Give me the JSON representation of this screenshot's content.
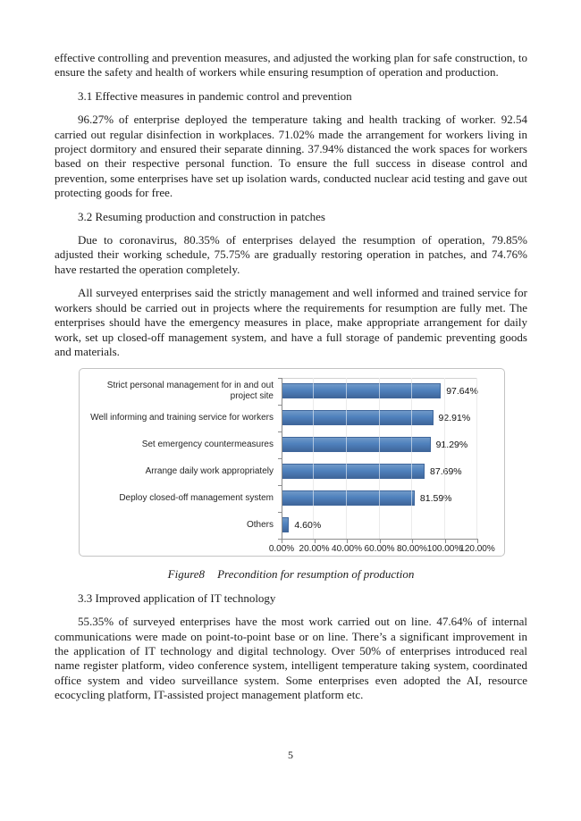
{
  "page": {
    "number": "5"
  },
  "content": {
    "para_intro": "effective controlling and prevention measures, and adjusted the working plan for safe construction, to ensure the safety and health of workers while ensuring resumption of operation and production.",
    "heading_31": "3.1 Effective measures in pandemic control and prevention",
    "para_31": "96.27% of enterprise deployed the temperature taking and health tracking of worker. 92.54 carried out regular disinfection in workplaces. 71.02% made the arrangement for workers living in project dormitory and ensured their separate dinning. 37.94% distanced the work spaces for workers based on their respective personal function. To ensure the full success in disease control and prevention, some enterprises have set up isolation wards, conducted nuclear acid testing and gave out protecting goods for free.",
    "heading_32": "3.2 Resuming production and construction in patches",
    "para_32a": "Due to coronavirus, 80.35% of enterprises delayed the resumption of operation, 79.85% adjusted their working schedule, 75.75% are gradually restoring operation in patches, and 74.76% have restarted the operation completely.",
    "para_32b": "All surveyed enterprises said the strictly management and well informed and trained service for workers should be carried out in projects where the requirements for resumption are fully met. The enterprises should have the emergency measures in place, make appropriate arrangement for daily work, set up closed-off management system, and have a full storage of pandemic preventing goods and materials.",
    "figure_caption_label": "Figure8",
    "figure_caption_text": "Precondition for resumption of production",
    "heading_33": "3.3 Improved application of IT technology",
    "para_33": "55.35% of surveyed enterprises have the most work carried out on line. 47.64% of internal communications were made on point-to-point base or on line. There’s a significant improvement in the application of IT technology and digital technology. Over 50% of enterprises introduced real name register platform, video conference system, intelligent temperature taking system, coordinated office system and video surveillance system. Some enterprises even adopted the AI, resource ecocycling platform, IT-assisted project management platform etc."
  },
  "chart_data": {
    "type": "bar",
    "orientation": "horizontal",
    "title": "",
    "categories": [
      "Strict personal management for in and out project site",
      "Well informing and training service for workers",
      "Set emergency countermeasures",
      "Arrange daily work appropriately",
      "Deploy closed-off management system",
      "Others"
    ],
    "values": [
      97.64,
      92.91,
      91.29,
      87.69,
      81.59,
      4.6
    ],
    "labels": [
      "97.64%",
      "92.91%",
      "91.29%",
      "87.69%",
      "81.59%",
      "4.60%"
    ],
    "x_ticks": [
      "0.00%",
      "20.00%",
      "40.00%",
      "60.00%",
      "80.00%",
      "100.00%",
      "120.00%"
    ],
    "xlim": [
      0,
      120
    ],
    "grid": true,
    "legend": "none",
    "bar_color": "#4f81bd",
    "bar_color_light": "#7099c8",
    "bar_color_dark": "#3f669b",
    "axis_color": "#8c8c8c",
    "gridline_color": "#d2d2d2"
  }
}
